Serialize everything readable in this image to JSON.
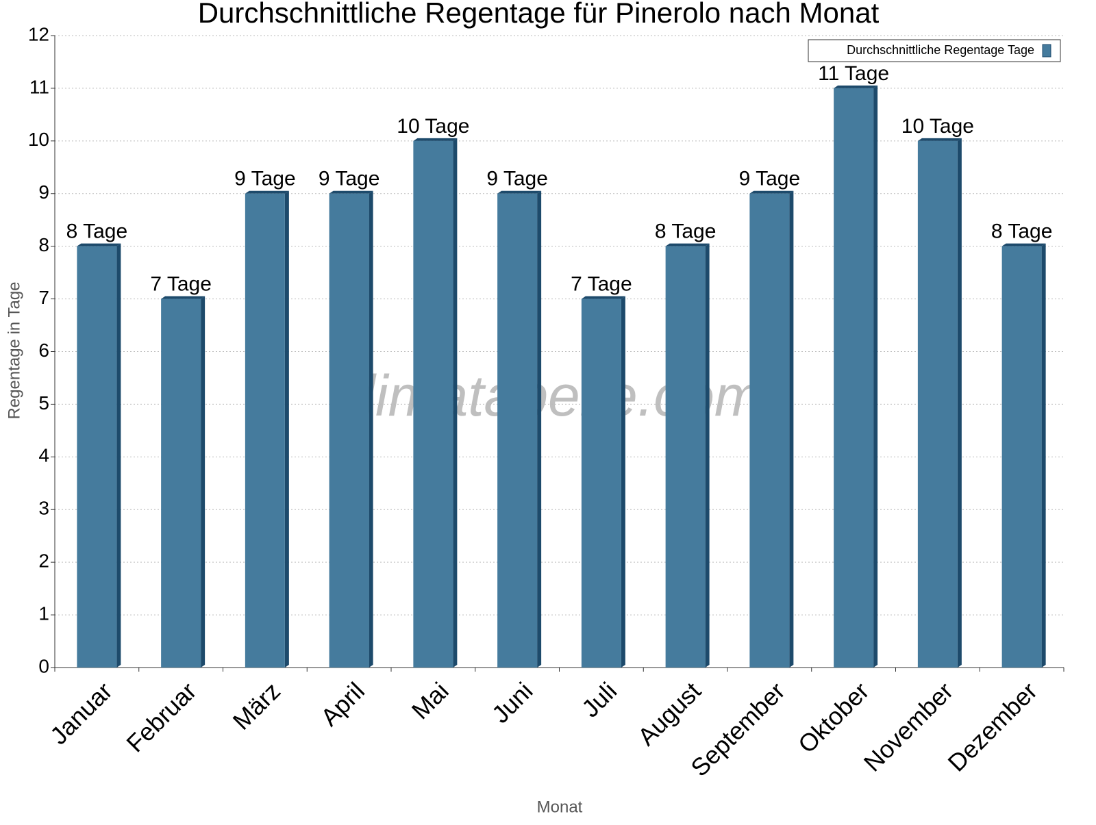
{
  "chart_data": {
    "type": "bar",
    "title": "Durchschnittliche Regentage für Pinerolo nach Monat",
    "x_label": "Monat",
    "y_label": "Regentage in Tage",
    "watermark": "klimatabelle.com",
    "categories": [
      "Januar",
      "Februar",
      "März",
      "April",
      "Mai",
      "Juni",
      "Juli",
      "August",
      "September",
      "Oktober",
      "November",
      "Dezember"
    ],
    "series": [
      {
        "name": "Durchschnittliche Regentage Tage",
        "color": "#457b9d",
        "values": [
          8,
          7,
          9,
          9,
          10,
          9,
          7,
          8,
          9,
          11,
          10,
          8
        ],
        "value_labels": [
          "8 Tage",
          "7 Tage",
          "9 Tage",
          "9 Tage",
          "10 Tage",
          "9 Tage",
          "7 Tage",
          "8 Tage",
          "9 Tage",
          "11 Tage",
          "10 Tage",
          "8 Tage"
        ]
      }
    ],
    "ylim": [
      0,
      12
    ],
    "yticks": [
      0,
      1,
      2,
      3,
      4,
      5,
      6,
      7,
      8,
      9,
      10,
      11,
      12
    ],
    "grid": true,
    "legend": "top-right"
  }
}
